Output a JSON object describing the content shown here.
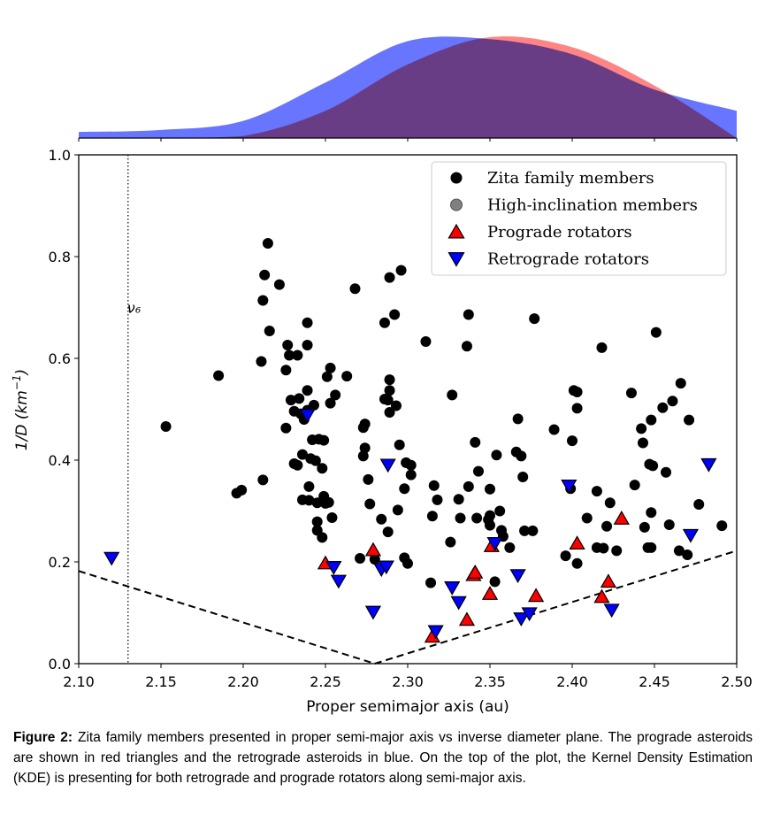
{
  "chart_data": {
    "type": "scatter",
    "xlabel": "Proper semimajor axis (au)",
    "ylabel": "1/D (km⁻¹)",
    "xlim": [
      2.1,
      2.5
    ],
    "ylim": [
      0.0,
      1.0
    ],
    "xticks": [
      "2.10",
      "2.15",
      "2.20",
      "2.25",
      "2.30",
      "2.35",
      "2.40",
      "2.45",
      "2.50"
    ],
    "yticks": [
      "0.0",
      "0.2",
      "0.4",
      "0.6",
      "0.8",
      "1.0"
    ],
    "grid": false,
    "legend_position": "top-right",
    "annotation": {
      "text": "ν₆",
      "x": 2.13
    },
    "vline_x": 2.13,
    "boundary_lines": [
      {
        "x": [
          2.1,
          2.28
        ],
        "y": [
          0.182,
          0.0
        ]
      },
      {
        "x": [
          2.28,
          2.5
        ],
        "y": [
          0.0,
          0.222
        ]
      }
    ],
    "legend": [
      {
        "label": "Zita family members",
        "marker": "circle",
        "color": "#000000"
      },
      {
        "label": "High-inclination members",
        "marker": "circle",
        "color": "#808080"
      },
      {
        "label": "Prograde rotators",
        "marker": "triangle-up",
        "color": "#ff0000"
      },
      {
        "label": "Retrograde rotators",
        "marker": "triangle-down",
        "color": "#0000ff"
      }
    ],
    "series": [
      {
        "name": "Zita family members",
        "points": [
          [
            2.153,
            0.466
          ],
          [
            2.185,
            0.566
          ],
          [
            2.196,
            0.335
          ],
          [
            2.199,
            0.341
          ],
          [
            2.211,
            0.594
          ],
          [
            2.212,
            0.714
          ],
          [
            2.212,
            0.361
          ],
          [
            2.213,
            0.764
          ],
          [
            2.215,
            0.826
          ],
          [
            2.216,
            0.654
          ],
          [
            2.222,
            0.745
          ],
          [
            2.226,
            0.463
          ],
          [
            2.226,
            0.577
          ],
          [
            2.227,
            0.626
          ],
          [
            2.228,
            0.606
          ],
          [
            2.229,
            0.518
          ],
          [
            2.231,
            0.496
          ],
          [
            2.231,
            0.393
          ],
          [
            2.233,
            0.606
          ],
          [
            2.233,
            0.39
          ],
          [
            2.234,
            0.521
          ],
          [
            2.235,
            0.491
          ],
          [
            2.236,
            0.322
          ],
          [
            2.236,
            0.411
          ],
          [
            2.237,
            0.48
          ],
          [
            2.239,
            0.67
          ],
          [
            2.239,
            0.626
          ],
          [
            2.239,
            0.537
          ],
          [
            2.239,
            0.498
          ],
          [
            2.24,
            0.348
          ],
          [
            2.24,
            0.321
          ],
          [
            2.241,
            0.403
          ],
          [
            2.242,
            0.44
          ],
          [
            2.243,
            0.508
          ],
          [
            2.244,
            0.399
          ],
          [
            2.245,
            0.316
          ],
          [
            2.245,
            0.262
          ],
          [
            2.245,
            0.279
          ],
          [
            2.246,
            0.441
          ],
          [
            2.248,
            0.384
          ],
          [
            2.248,
            0.248
          ],
          [
            2.249,
            0.439
          ],
          [
            2.249,
            0.329
          ],
          [
            2.25,
            0.315
          ],
          [
            2.251,
            0.564
          ],
          [
            2.252,
            0.317
          ],
          [
            2.253,
            0.581
          ],
          [
            2.253,
            0.512
          ],
          [
            2.254,
            0.287
          ],
          [
            2.256,
            0.528
          ],
          [
            2.263,
            0.565
          ],
          [
            2.268,
            0.737
          ],
          [
            2.271,
            0.207
          ],
          [
            2.273,
            0.464
          ],
          [
            2.273,
            0.408
          ],
          [
            2.274,
            0.471
          ],
          [
            2.274,
            0.424
          ],
          [
            2.276,
            0.362
          ],
          [
            2.277,
            0.314
          ],
          [
            2.28,
            0.205
          ],
          [
            2.284,
            0.284
          ],
          [
            2.286,
            0.52
          ],
          [
            2.286,
            0.67
          ],
          [
            2.288,
            0.518
          ],
          [
            2.288,
            0.259
          ],
          [
            2.289,
            0.558
          ],
          [
            2.289,
            0.537
          ],
          [
            2.289,
            0.494
          ],
          [
            2.289,
            0.759
          ],
          [
            2.292,
            0.686
          ],
          [
            2.293,
            0.507
          ],
          [
            2.294,
            0.302
          ],
          [
            2.295,
            0.43
          ],
          [
            2.296,
            0.773
          ],
          [
            2.298,
            0.344
          ],
          [
            2.298,
            0.208
          ],
          [
            2.299,
            0.395
          ],
          [
            2.3,
            0.197
          ],
          [
            2.302,
            0.371
          ],
          [
            2.302,
            0.39
          ],
          [
            2.311,
            0.633
          ],
          [
            2.314,
            0.159
          ],
          [
            2.315,
            0.29
          ],
          [
            2.316,
            0.35
          ],
          [
            2.318,
            0.322
          ],
          [
            2.326,
            0.239
          ],
          [
            2.327,
            0.528
          ],
          [
            2.331,
            0.323
          ],
          [
            2.332,
            0.286
          ],
          [
            2.336,
            0.624
          ],
          [
            2.337,
            0.348
          ],
          [
            2.337,
            0.686
          ],
          [
            2.341,
            0.435
          ],
          [
            2.342,
            0.286
          ],
          [
            2.343,
            0.378
          ],
          [
            2.349,
            0.283
          ],
          [
            2.35,
            0.291
          ],
          [
            2.35,
            0.343
          ],
          [
            2.35,
            0.272
          ],
          [
            2.353,
            0.161
          ],
          [
            2.354,
            0.41
          ],
          [
            2.356,
            0.3
          ],
          [
            2.357,
            0.262
          ],
          [
            2.358,
            0.25
          ],
          [
            2.362,
            0.228
          ],
          [
            2.366,
            0.416
          ],
          [
            2.367,
            0.481
          ],
          [
            2.369,
            0.408
          ],
          [
            2.37,
            0.367
          ],
          [
            2.371,
            0.261
          ],
          [
            2.376,
            0.261
          ],
          [
            2.377,
            0.678
          ],
          [
            2.389,
            0.46
          ],
          [
            2.396,
            0.212
          ],
          [
            2.399,
            0.344
          ],
          [
            2.4,
            0.438
          ],
          [
            2.401,
            0.537
          ],
          [
            2.403,
            0.534
          ],
          [
            2.403,
            0.502
          ],
          [
            2.403,
            0.197
          ],
          [
            2.409,
            0.286
          ],
          [
            2.415,
            0.228
          ],
          [
            2.415,
            0.339
          ],
          [
            2.418,
            0.621
          ],
          [
            2.419,
            0.227
          ],
          [
            2.421,
            0.27
          ],
          [
            2.423,
            0.316
          ],
          [
            2.427,
            0.222
          ],
          [
            2.436,
            0.532
          ],
          [
            2.438,
            0.351
          ],
          [
            2.442,
            0.462
          ],
          [
            2.443,
            0.434
          ],
          [
            2.444,
            0.268
          ],
          [
            2.446,
            0.228
          ],
          [
            2.447,
            0.392
          ],
          [
            2.448,
            0.228
          ],
          [
            2.448,
            0.297
          ],
          [
            2.448,
            0.479
          ],
          [
            2.449,
            0.389
          ],
          [
            2.451,
            0.651
          ],
          [
            2.455,
            0.503
          ],
          [
            2.457,
            0.376
          ],
          [
            2.459,
            0.273
          ],
          [
            2.461,
            0.516
          ],
          [
            2.465,
            0.222
          ],
          [
            2.466,
            0.551
          ],
          [
            2.47,
            0.214
          ],
          [
            2.471,
            0.479
          ],
          [
            2.477,
            0.313
          ],
          [
            2.491,
            0.271
          ]
        ]
      },
      {
        "name": "Prograde rotators",
        "points": [
          [
            2.25,
            0.196
          ],
          [
            2.279,
            0.222
          ],
          [
            2.315,
            0.052
          ],
          [
            2.336,
            0.085
          ],
          [
            2.34,
            0.173
          ],
          [
            2.341,
            0.178
          ],
          [
            2.35,
            0.136
          ],
          [
            2.351,
            0.23
          ],
          [
            2.378,
            0.132
          ],
          [
            2.403,
            0.235
          ],
          [
            2.418,
            0.13
          ],
          [
            2.422,
            0.16
          ],
          [
            2.43,
            0.284
          ]
        ]
      },
      {
        "name": "Retrograde rotators",
        "points": [
          [
            2.12,
            0.209
          ],
          [
            2.239,
            0.49
          ],
          [
            2.255,
            0.191
          ],
          [
            2.258,
            0.164
          ],
          [
            2.279,
            0.103
          ],
          [
            2.284,
            0.187
          ],
          [
            2.287,
            0.192
          ],
          [
            2.288,
            0.392
          ],
          [
            2.317,
            0.065
          ],
          [
            2.327,
            0.151
          ],
          [
            2.331,
            0.122
          ],
          [
            2.353,
            0.238
          ],
          [
            2.367,
            0.175
          ],
          [
            2.369,
            0.09
          ],
          [
            2.374,
            0.1
          ],
          [
            2.398,
            0.351
          ],
          [
            2.424,
            0.107
          ],
          [
            2.472,
            0.254
          ],
          [
            2.483,
            0.393
          ]
        ]
      }
    ],
    "kde": {
      "x": [
        2.1,
        2.15,
        2.2,
        2.25,
        2.3,
        2.35,
        2.4,
        2.45,
        2.5
      ],
      "retrograde": [
        0.06,
        0.08,
        0.17,
        0.55,
        0.96,
        0.98,
        0.83,
        0.48,
        0.27
      ],
      "prograde": [
        0.0,
        0.0,
        0.02,
        0.27,
        0.73,
        1.0,
        0.9,
        0.52,
        0.0
      ],
      "retrograde_color": "#4d5dff",
      "prograde_color": "#ff6666",
      "overlap_color": "#7b3fc5"
    }
  },
  "caption": {
    "label": "Figure 2:",
    "text": " Zita family members presented in proper semi-major axis vs inverse diameter plane. The prograde asteroids are shown in red triangles and the retrograde asteroids in blue. On the top of the plot, the Kernel Density Estimation (KDE) is presenting for both retrograde and prograde rotators along semi-major axis."
  }
}
